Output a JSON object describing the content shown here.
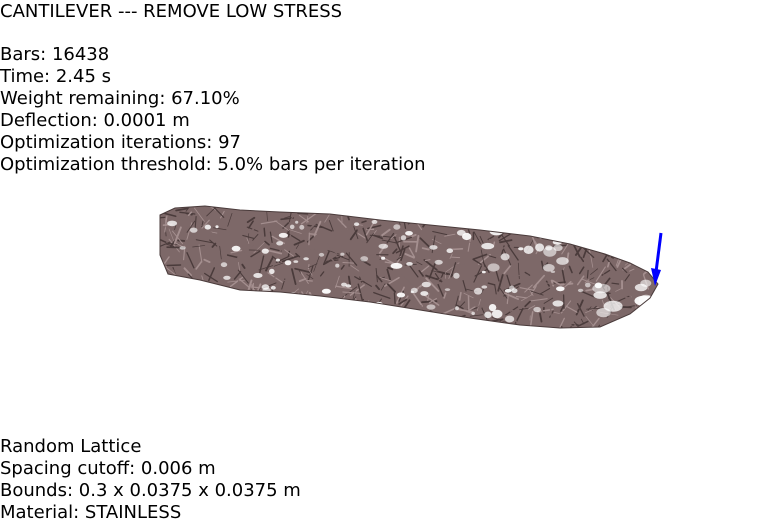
{
  "title": "CANTILEVER --- REMOVE LOW STRESS",
  "stats": {
    "bars": "Bars: 16438",
    "time": "Time: 2.45 s",
    "weight_remaining": "Weight remaining: 67.10%",
    "deflection": "Deflection: 0.0001 m",
    "iterations": "Optimization iterations: 97",
    "threshold": "Optimization threshold: 5.0% bars per iteration"
  },
  "lattice": {
    "type": "Random Lattice",
    "spacing_cutoff": "Spacing cutoff: 0.006 m",
    "bounds": "Bounds: 0.3 x 0.0375 x 0.0375 m",
    "material": "Material: STAINLESS"
  },
  "colors": {
    "structure": "#7d6868",
    "structure_dark": "#4a3b3b",
    "structure_light": "#a48f8f",
    "load_arrow": "#0000ff"
  }
}
